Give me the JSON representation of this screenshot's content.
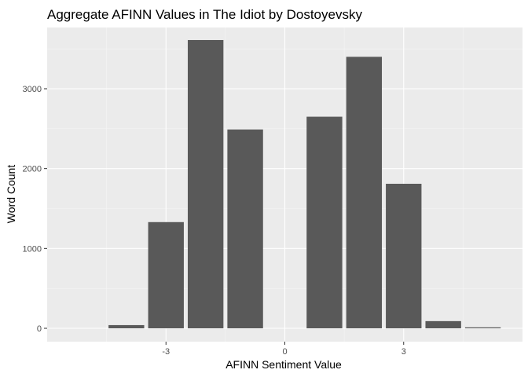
{
  "chart_data": {
    "type": "bar",
    "title": "Aggregate AFINN Values in The Idiot by Dostoyevsky",
    "xlabel": "AFINN Sentiment Value",
    "ylabel": "Word Count",
    "categories": [
      -4,
      -3,
      -2,
      -1,
      1,
      2,
      3,
      4,
      5
    ],
    "values": [
      40,
      1330,
      3610,
      2490,
      2650,
      3400,
      1810,
      90,
      12
    ],
    "xlim": [
      -6,
      6
    ],
    "ylim": [
      0,
      3800
    ],
    "x_ticks": [
      -3,
      0,
      3
    ],
    "x_tick_labels": [
      "-3",
      "0",
      "3"
    ],
    "y_ticks": [
      0,
      1000,
      2000,
      3000
    ],
    "y_tick_labels": [
      "0",
      "1000",
      "2000",
      "3000"
    ],
    "grid": true,
    "colors": {
      "bar": "#595959",
      "panel": "#ebebeb",
      "grid_major": "#ffffff",
      "grid_minor": "#f5f5f5"
    }
  }
}
